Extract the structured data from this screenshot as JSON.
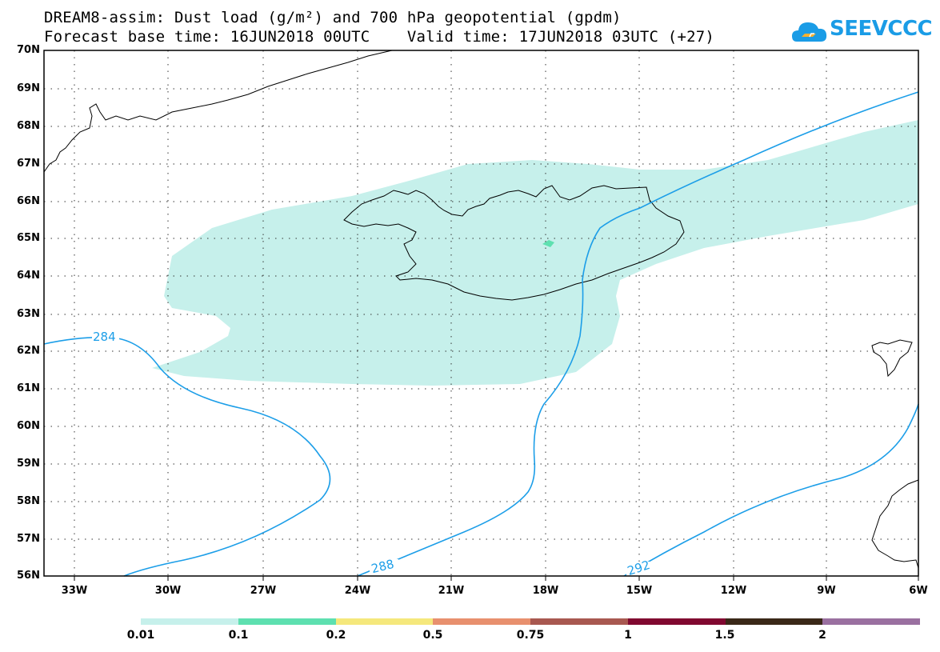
{
  "header": {
    "title_line1": "DREAM8-assim: Dust load (g/m²) and 700 hPa geopotential (gpdm)",
    "title_line2": "Forecast base time: 16JUN2018 00UTC    Valid time: 17JUN2018 03UTC (+27)",
    "logo_text": "SEEVCCC",
    "logo_icon": "cloud-icon"
  },
  "map": {
    "lat_labels": [
      "70N",
      "69N",
      "68N",
      "67N",
      "66N",
      "65N",
      "64N",
      "63N",
      "62N",
      "61N",
      "60N",
      "59N",
      "58N",
      "57N",
      "56N"
    ],
    "lon_labels": [
      "33W",
      "30W",
      "27W",
      "24W",
      "21W",
      "18W",
      "15W",
      "12W",
      "9W",
      "6W"
    ],
    "contour_labels": [
      "284",
      "288",
      "292"
    ],
    "contour_color": "#1c9ee8",
    "dust_fill_color": "#c6f0eb",
    "dust_core_color": "#5ee0b0",
    "coast_color": "#000000"
  },
  "colorbar": {
    "labels": [
      "0.01",
      "0.1",
      "0.2",
      "0.5",
      "0.75",
      "1",
      "1.5",
      "2"
    ],
    "colors": [
      "#c6f0eb",
      "#5ee0b0",
      "#f5e87c",
      "#e8906e",
      "#a85850",
      "#800830",
      "#3a2818",
      "#9a70a0"
    ]
  }
}
